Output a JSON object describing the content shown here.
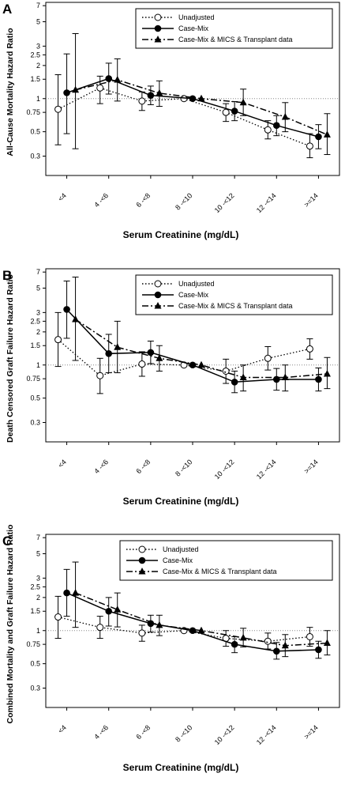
{
  "chart_data": [
    {
      "type": "line",
      "panel": "A",
      "ylabel": "All-Cause Mortality Hazard Ratio",
      "xlabel": "Serum Creatinine (mg/dL)",
      "categories": [
        "<4",
        "4 -<6",
        "6 -<8",
        "8 -<10",
        "10 -<12",
        "12 -<14",
        ">=14"
      ],
      "y_scale": "log",
      "ylim": [
        0.2,
        7.5
      ],
      "y_ticks": [
        0.3,
        0.5,
        0.75,
        1,
        1.5,
        2,
        2.5,
        3,
        5,
        7
      ],
      "y_tick_labels": [
        "0.3",
        "0.5",
        "0.75",
        "1",
        "1.5",
        "2",
        "2.5",
        "3",
        "5",
        "7"
      ],
      "reference_line": 1,
      "legend_position": "top-right",
      "series": [
        {
          "name": "Unadjusted",
          "style": "dotted",
          "marker": "open-circle",
          "values": [
            0.8,
            1.25,
            0.95,
            1.0,
            0.75,
            0.52,
            0.37
          ],
          "ci_low": [
            0.38,
            0.9,
            0.78,
            1.0,
            0.62,
            0.43,
            0.29
          ],
          "ci_high": [
            1.65,
            1.6,
            1.15,
            1.0,
            0.9,
            0.63,
            0.48
          ]
        },
        {
          "name": "Case-Mix",
          "style": "solid",
          "marker": "filled-circle",
          "values": [
            1.13,
            1.52,
            1.07,
            1.0,
            0.77,
            0.57,
            0.45
          ],
          "ci_low": [
            0.48,
            1.1,
            0.88,
            1.0,
            0.63,
            0.46,
            0.35
          ],
          "ci_high": [
            2.55,
            2.1,
            1.3,
            1.0,
            0.94,
            0.7,
            0.58
          ]
        },
        {
          "name": "Case-Mix & MICS & Transplant data",
          "style": "dashdot",
          "marker": "filled-triangle",
          "values": [
            1.2,
            1.48,
            1.12,
            1.0,
            0.92,
            0.68,
            0.47
          ],
          "ci_low": [
            0.35,
            0.95,
            0.85,
            1.0,
            0.7,
            0.5,
            0.31
          ],
          "ci_high": [
            3.9,
            2.3,
            1.45,
            1.0,
            1.22,
            0.92,
            0.73
          ]
        }
      ]
    },
    {
      "type": "line",
      "panel": "B",
      "ylabel": "Death Censored Graft Failure Hazard Ratio",
      "xlabel": "Serum Creatinine (mg/dL)",
      "categories": [
        "<4",
        "4 -<6",
        "6 -<8",
        "8 -<10",
        "10 -<12",
        "12 -<14",
        ">=14"
      ],
      "y_scale": "log",
      "ylim": [
        0.2,
        7.5
      ],
      "y_ticks": [
        0.3,
        0.5,
        0.75,
        1,
        1.5,
        2,
        2.5,
        3,
        5,
        7
      ],
      "y_tick_labels": [
        "0.3",
        "0.5",
        "0.75",
        "1",
        "1.5",
        "2",
        "2.5",
        "3",
        "5",
        "7"
      ],
      "reference_line": 1,
      "legend_position": "top-right",
      "series": [
        {
          "name": "Unadjusted",
          "style": "dotted",
          "marker": "open-circle",
          "values": [
            1.7,
            0.8,
            1.02,
            1.0,
            0.88,
            1.15,
            1.4
          ],
          "ci_low": [
            0.97,
            0.55,
            0.79,
            1.0,
            0.68,
            0.9,
            1.13
          ],
          "ci_high": [
            3.0,
            1.15,
            1.32,
            1.0,
            1.13,
            1.47,
            1.73
          ]
        },
        {
          "name": "Case-Mix",
          "style": "solid",
          "marker": "filled-circle",
          "values": [
            3.2,
            1.27,
            1.3,
            1.0,
            0.7,
            0.74,
            0.74
          ],
          "ci_low": [
            1.75,
            0.85,
            1.03,
            1.0,
            0.56,
            0.59,
            0.58
          ],
          "ci_high": [
            5.8,
            1.9,
            1.65,
            1.0,
            0.88,
            0.93,
            0.94
          ]
        },
        {
          "name": "Case-Mix & MICS & Transplant data",
          "style": "dashdot",
          "marker": "filled-triangle",
          "values": [
            2.6,
            1.45,
            1.15,
            1.0,
            0.77,
            0.77,
            0.83
          ],
          "ci_low": [
            1.1,
            0.85,
            0.88,
            1.0,
            0.58,
            0.58,
            0.61
          ],
          "ci_high": [
            6.3,
            2.5,
            1.5,
            1.0,
            1.0,
            1.0,
            1.17
          ]
        }
      ]
    },
    {
      "type": "line",
      "panel": "C",
      "ylabel": "Combined Mortality and Graft Failure Hazard Ratio",
      "xlabel": "Serum Creatinine (mg/dL)",
      "categories": [
        "<4",
        "4 -<6",
        "6 -<8",
        "8 -<10",
        "10 -<12",
        "12 -<14",
        ">=14"
      ],
      "y_scale": "log",
      "ylim": [
        0.2,
        7.5
      ],
      "y_ticks": [
        0.3,
        0.5,
        0.75,
        1,
        1.5,
        2,
        2.5,
        3,
        5,
        7
      ],
      "y_tick_labels": [
        "0.3",
        "0.5",
        "0.75",
        "1",
        "1.5",
        "2",
        "2.5",
        "3",
        "5",
        "7"
      ],
      "reference_line": 1,
      "legend_position": "top-right",
      "series": [
        {
          "name": "Unadjusted",
          "style": "dotted",
          "marker": "open-circle",
          "values": [
            1.33,
            1.07,
            0.95,
            1.0,
            0.85,
            0.8,
            0.88
          ],
          "ci_low": [
            0.85,
            0.85,
            0.8,
            1.0,
            0.72,
            0.68,
            0.72
          ],
          "ci_high": [
            2.05,
            1.35,
            1.12,
            1.0,
            1.0,
            0.95,
            1.07
          ]
        },
        {
          "name": "Case-Mix",
          "style": "solid",
          "marker": "filled-circle",
          "values": [
            2.2,
            1.5,
            1.16,
            1.0,
            0.75,
            0.65,
            0.67
          ],
          "ci_low": [
            1.35,
            1.1,
            0.97,
            1.0,
            0.63,
            0.55,
            0.56
          ],
          "ci_high": [
            3.6,
            2.0,
            1.38,
            1.0,
            0.88,
            0.78,
            0.8
          ]
        },
        {
          "name": "Case-Mix & MICS & Transplant data",
          "style": "dashdot",
          "marker": "filled-triangle",
          "values": [
            2.2,
            1.55,
            1.12,
            1.0,
            0.86,
            0.73,
            0.77
          ],
          "ci_low": [
            1.07,
            1.08,
            0.9,
            1.0,
            0.71,
            0.58,
            0.6
          ],
          "ci_high": [
            4.2,
            2.2,
            1.38,
            1.0,
            1.05,
            0.92,
            1.0
          ]
        }
      ]
    }
  ]
}
